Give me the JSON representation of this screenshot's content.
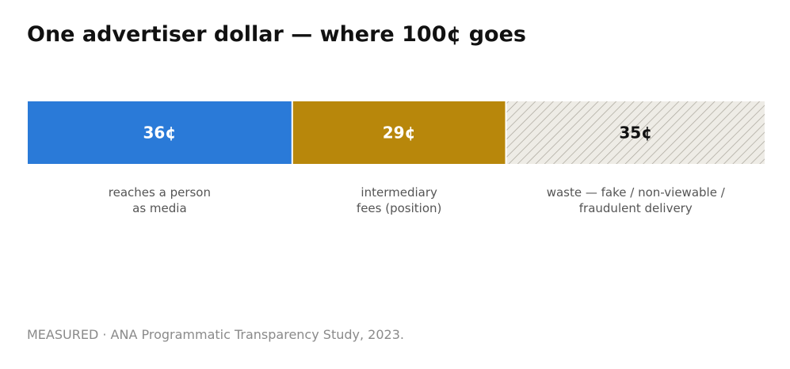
{
  "title": "One advertiser dollar — where 100¢ goes",
  "footnote": "MEASURED · ANA Programmatic Transparency Study, 2023.",
  "chart_data": {
    "type": "bar",
    "orientation": "horizontal-stacked",
    "total": 100,
    "unit": "¢",
    "title": "One advertiser dollar — where 100¢ goes",
    "segments": [
      {
        "value": 36,
        "label": "36¢",
        "caption": [
          "reaches a person",
          "as media"
        ],
        "color": "#2a7ad8",
        "label_color": "#ffffff",
        "pattern": "solid"
      },
      {
        "value": 29,
        "label": "29¢",
        "caption": [
          "intermediary",
          "fees (position)"
        ],
        "color": "#b8870b",
        "label_color": "#ffffff",
        "pattern": "solid"
      },
      {
        "value": 35,
        "label": "35¢",
        "caption": [
          "waste — fake / non-viewable /",
          "fraudulent delivery"
        ],
        "color": "#eeece6",
        "label_color": "#111111",
        "pattern": "hatched",
        "hatch_color": "#a8a49a"
      }
    ]
  }
}
